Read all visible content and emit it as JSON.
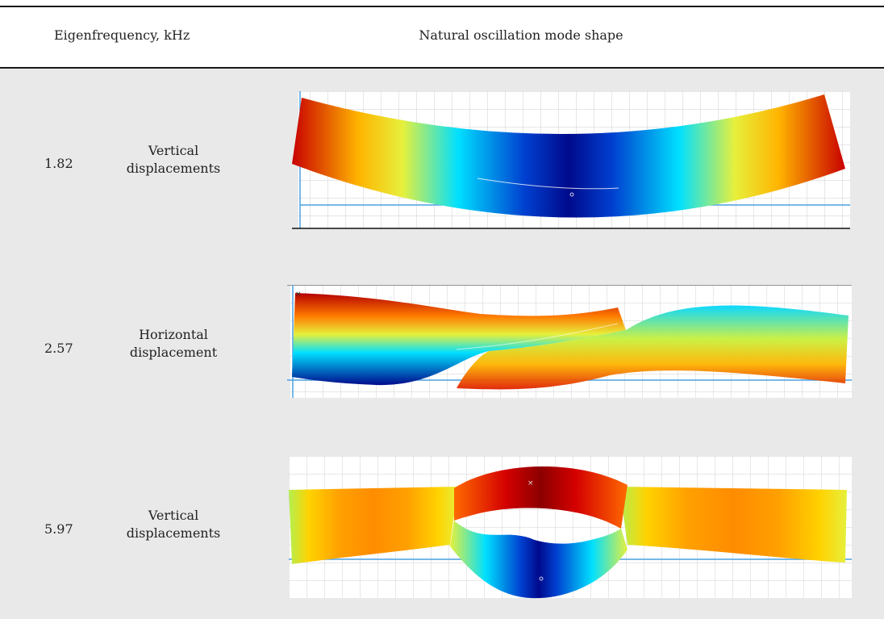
{
  "header": {
    "col_frequency": "Eigenfrequency, kHz",
    "col_shape": "Natural oscillation mode shape"
  },
  "modes": [
    {
      "frequency": "1.82",
      "direction_line1": "Vertical",
      "direction_line2": "displacements"
    },
    {
      "frequency": "2.57",
      "direction_line1": "Horizontal",
      "direction_line2": "displacement"
    },
    {
      "frequency": "5.97",
      "direction_line1": "Vertical",
      "direction_line2": "displacements"
    }
  ],
  "colormap": {
    "low": "#000a8c",
    "mid_low": "#00d6ff",
    "mid": "#c8f03c",
    "mid_high": "#ffb400",
    "high": "#c80000"
  }
}
